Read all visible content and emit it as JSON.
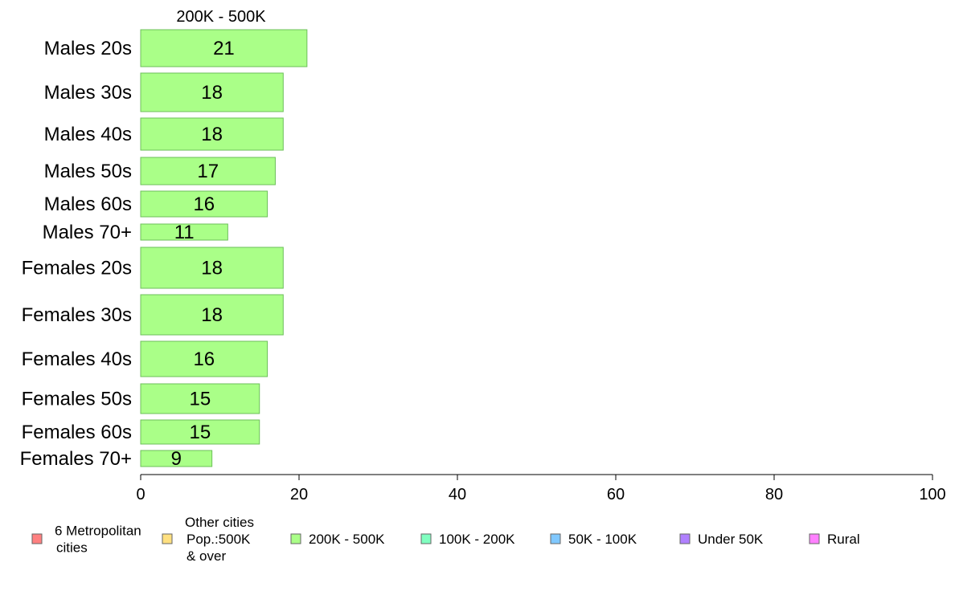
{
  "chart_data": {
    "type": "bar",
    "orientation": "horizontal",
    "panel_title": "200K - 500K",
    "categories": [
      "Males 20s",
      "Males 30s",
      "Males 40s",
      "Males 50s",
      "Males 60s",
      "Males 70+",
      "Females 20s",
      "Females 30s",
      "Females 40s",
      "Females 50s",
      "Females 60s",
      "Females 70+"
    ],
    "values": [
      21,
      18,
      18,
      17,
      16,
      11,
      18,
      18,
      16,
      15,
      15,
      9
    ],
    "xlim": [
      0,
      100
    ],
    "xticks": [
      0,
      20,
      40,
      60,
      80,
      100
    ],
    "bar_color": "#aaff88",
    "bar_edge": "#6cbf5a",
    "grid": false,
    "legend": {
      "placement": "bottom",
      "items": [
        {
          "label": [
            "6 Metropolitan",
            "cities"
          ],
          "color": "#ff8080"
        },
        {
          "label": [
            "Other cities",
            "Pop.:500K",
            "& over"
          ],
          "color": "#ffe080"
        },
        {
          "label": [
            "200K - 500K"
          ],
          "color": "#aaff88"
        },
        {
          "label": [
            "100K - 200K"
          ],
          "color": "#80ffc0"
        },
        {
          "label": [
            "50K - 100K"
          ],
          "color": "#80c8ff"
        },
        {
          "label": [
            "Under 50K"
          ],
          "color": "#b080ff"
        },
        {
          "label": [
            "Rural"
          ],
          "color": "#ff80ff"
        }
      ]
    }
  }
}
